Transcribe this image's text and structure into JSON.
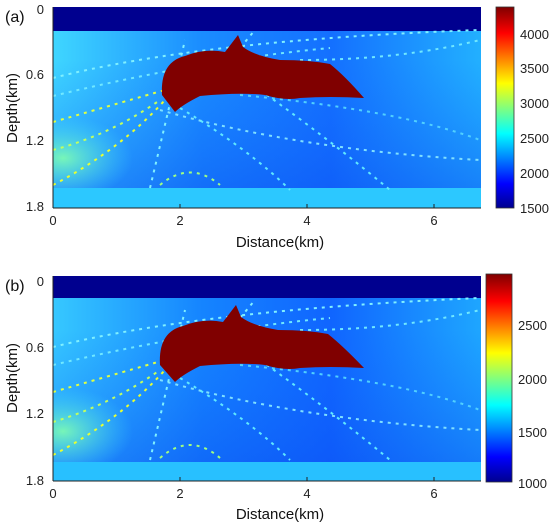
{
  "chart_data": [
    {
      "type": "heatmap",
      "panel_label": "(a)",
      "xlabel": "Distance(km)",
      "ylabel": "Depth(km)",
      "x_ticks": [
        "0",
        "2",
        "4",
        "6"
      ],
      "y_ticks": [
        "0",
        "0.6",
        "1.2",
        "1.8"
      ],
      "xlim": [
        0,
        6.7
      ],
      "ylim": [
        1.8,
        0
      ],
      "colorbar": {
        "colormap": "jet",
        "ticks": [
          "4000",
          "3500",
          "3000",
          "2500",
          "2000",
          "1500"
        ],
        "range": [
          1500,
          4400
        ]
      },
      "water_layer_depth_km": 0.2,
      "salt_color": "#800000"
    },
    {
      "type": "heatmap",
      "panel_label": "(b)",
      "xlabel": "Distance(km)",
      "ylabel": "Depth(km)",
      "x_ticks": [
        "0",
        "2",
        "4",
        "6"
      ],
      "y_ticks": [
        "0",
        "0.6",
        "1.2",
        "1.8"
      ],
      "xlim": [
        0,
        6.7
      ],
      "ylim": [
        1.8,
        0
      ],
      "colorbar": {
        "colormap": "jet",
        "ticks": [
          "2500",
          "2000",
          "1500",
          "1000"
        ],
        "range": [
          1000,
          2950
        ]
      },
      "water_layer_depth_km": 0.2,
      "salt_color": "#800000"
    }
  ]
}
